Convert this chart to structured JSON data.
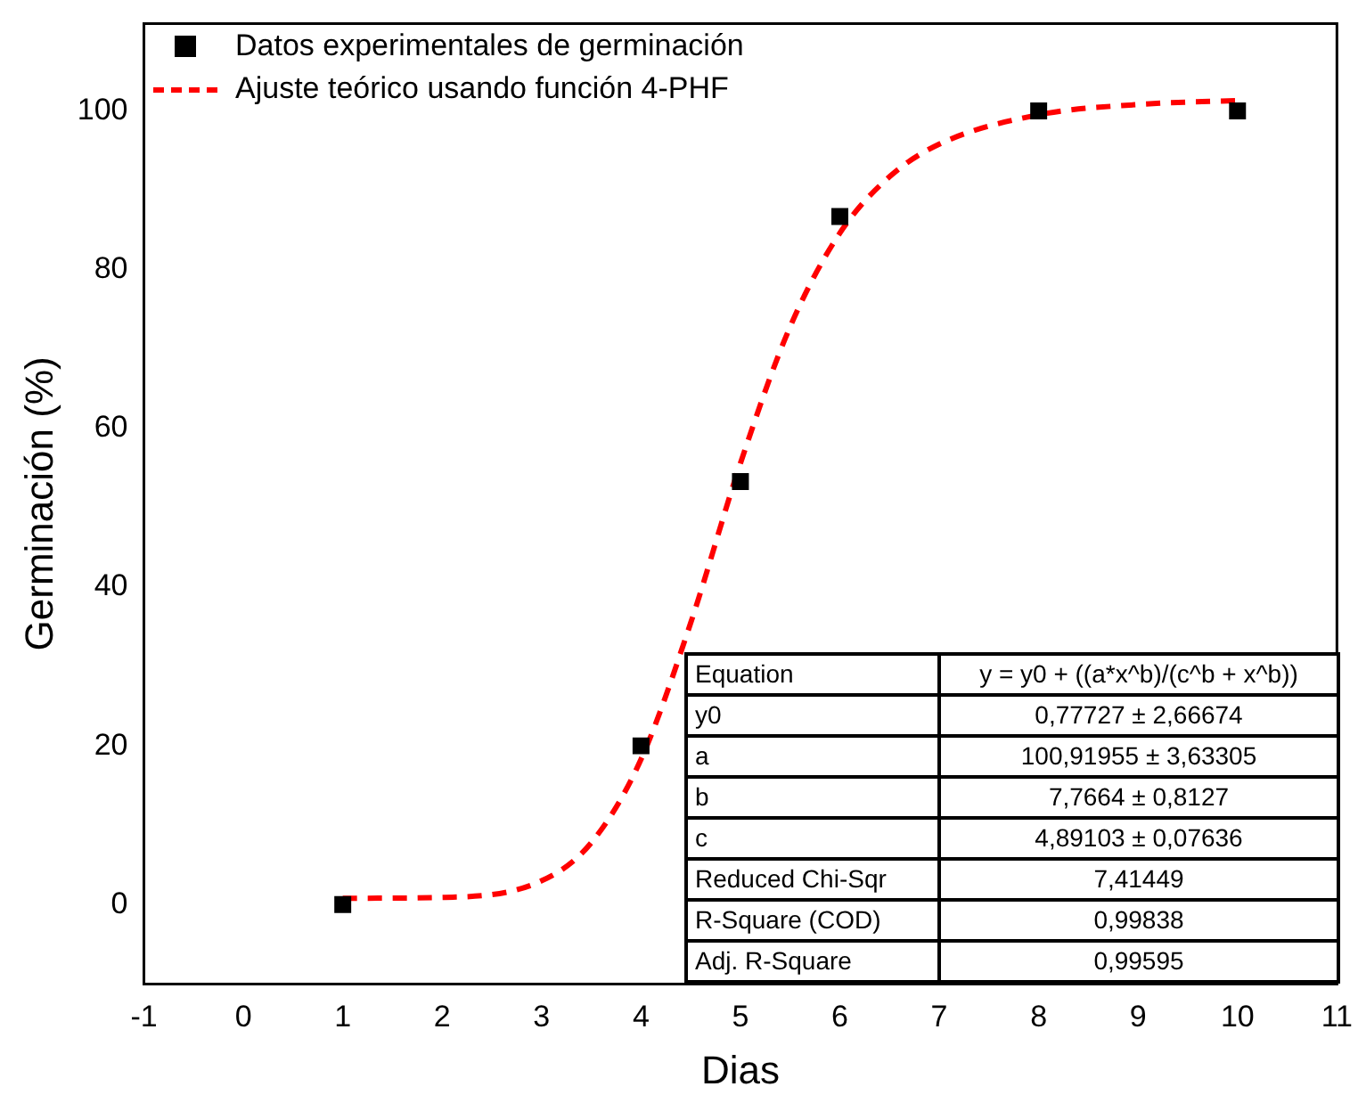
{
  "chart_data": {
    "type": "scatter",
    "xlabel": "Dias",
    "ylabel": "Germinación (%)",
    "xlim": [
      -1,
      11
    ],
    "xticks": [
      -1,
      0,
      1,
      2,
      3,
      4,
      5,
      6,
      7,
      8,
      9,
      10,
      11
    ],
    "ylim": [
      -10,
      111
    ],
    "yticks": [
      0,
      20,
      40,
      60,
      80,
      100
    ],
    "grid": false,
    "legend": "top left",
    "series": [
      {
        "name": "Datos experimentales de germinación",
        "marker": "square",
        "color": "#000000",
        "x": [
          1,
          4,
          5,
          6,
          8,
          10
        ],
        "values": [
          0,
          20,
          53.3,
          86.7,
          100,
          100
        ]
      },
      {
        "name": "Ajuste teórico usando función 4-PHF",
        "type": "line",
        "line_style": "dashed",
        "color": "#ff0000",
        "x": [
          1,
          2,
          3,
          3.5,
          4,
          4.5,
          5,
          5.5,
          6,
          6.5,
          7,
          8,
          9,
          10
        ],
        "values": [
          0.8,
          0.9,
          3.0,
          7.8,
          18.3,
          35.5,
          55.6,
          72.8,
          84.6,
          91.7,
          95.8,
          99.5,
          100.8,
          101.3
        ]
      }
    ],
    "annotations": [
      "Equation",
      "y = y0 + ((a*x^b)/(c^b + x^b))",
      "y0",
      "0,77727 ± 2,66674",
      "a",
      "100,91955 ± 3,63305",
      "b",
      "7,7664 ± 0,8127",
      "c",
      "4,89103 ± 0,07636",
      "Reduced Chi-Sqr",
      "7,41449",
      "R-Square (COD)",
      "0,99838",
      "Adj. R-Square",
      "0,99595"
    ]
  }
}
